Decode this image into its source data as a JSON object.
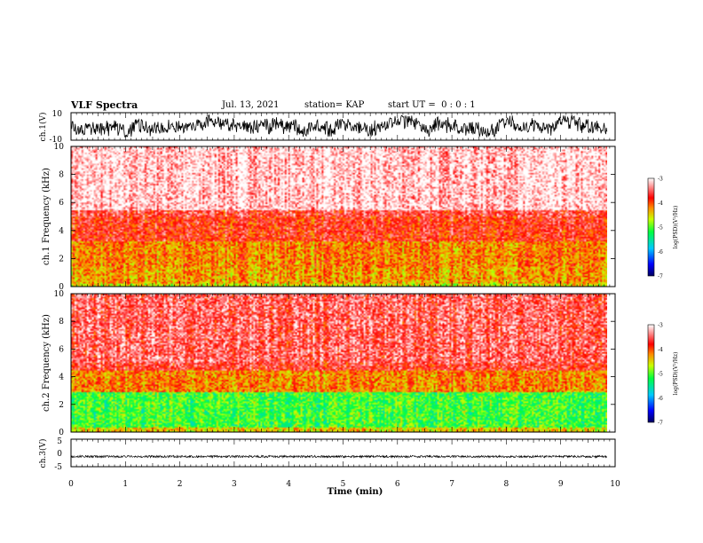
{
  "header": {
    "title": "VLF Spectra",
    "date": "Jul. 13, 2021",
    "station": "station= KAP",
    "start": "start UT =  0 : 0 : 1"
  },
  "chart_data": [
    {
      "type": "line",
      "panel": "ch1-waveform",
      "ylabel": "ch.1(V)",
      "ylim": [
        -10,
        10
      ],
      "y_ticks": [
        "10",
        "-10"
      ],
      "xlim": [
        0,
        10
      ],
      "x_units": "min",
      "data_end": 9.85,
      "description_level": "noisy trace, values mostly between -7 and 8 V"
    },
    {
      "type": "heatmap",
      "panel": "ch1-spectrogram",
      "ylabel": "ch.1 Frequency (kHz)",
      "ylim": [
        0,
        10
      ],
      "y_ticks": [
        "0",
        "2",
        "4",
        "6",
        "8",
        "10"
      ],
      "xlim": [
        0,
        10
      ],
      "data_end": 9.85,
      "colorbar": {
        "label": "log(PSD)(V²/Hz)",
        "min": -7,
        "max": -3,
        "ticks": [
          "-3",
          "-4",
          "-5",
          "-6",
          "-7"
        ]
      },
      "bands_kHz_to_log": [
        [
          0.3,
          -4.6
        ],
        [
          1.5,
          -4.3
        ],
        [
          3.3,
          -4.2
        ],
        [
          5.5,
          -3.8
        ],
        [
          10,
          -3.3
        ]
      ]
    },
    {
      "type": "heatmap",
      "panel": "ch2-spectrogram",
      "ylabel": "ch.2 Frequency (kHz)",
      "ylim": [
        0,
        10
      ],
      "y_ticks": [
        "0",
        "2",
        "4",
        "6",
        "8",
        "10"
      ],
      "xlim": [
        0,
        10
      ],
      "data_end": 9.85,
      "colorbar": {
        "label": "log(PSD)(V²/Hz)",
        "min": -7,
        "max": -3,
        "ticks": [
          "-3",
          "-4",
          "-5",
          "-6",
          "-7"
        ]
      },
      "bands_kHz_to_log": [
        [
          0.4,
          -4.5
        ],
        [
          3.0,
          -5.1
        ],
        [
          4.5,
          -4.2
        ],
        [
          10,
          -3.7
        ]
      ]
    },
    {
      "type": "line",
      "panel": "ch3-waveform",
      "ylabel": "ch.3(V)",
      "ylim": [
        -5,
        5
      ],
      "y_ticks": [
        "5",
        "0",
        "-5"
      ],
      "xlim": [
        0,
        10
      ],
      "xlabel": "Time (min)",
      "x_ticks": [
        "0",
        "1",
        "2",
        "3",
        "4",
        "5",
        "6",
        "7",
        "8",
        "9",
        "10"
      ],
      "data_end": 9.85,
      "level": -1.3,
      "amplitude": 0.4
    }
  ]
}
